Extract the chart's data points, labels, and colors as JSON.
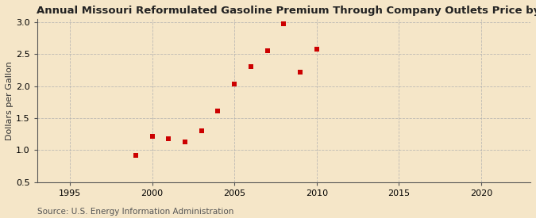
{
  "title": "Annual Missouri Reformulated Gasoline Premium Through Company Outlets Price by All Sellers",
  "ylabel": "Dollars per Gallon",
  "source": "Source: U.S. Energy Information Administration",
  "background_color": "#f5e6c8",
  "plot_bg_color": "#fdf5e0",
  "years": [
    1999,
    2000,
    2001,
    2002,
    2003,
    2004,
    2005,
    2006,
    2007,
    2008,
    2009,
    2010
  ],
  "values": [
    0.92,
    1.21,
    1.18,
    1.13,
    1.3,
    1.61,
    2.03,
    2.3,
    2.55,
    2.98,
    2.22,
    2.58
  ],
  "marker_color": "#cc0000",
  "marker": "s",
  "marker_size": 16,
  "xlim": [
    1993,
    2023
  ],
  "ylim": [
    0.5,
    3.05
  ],
  "xticks": [
    1995,
    2000,
    2005,
    2010,
    2015,
    2020
  ],
  "yticks": [
    0.5,
    1.0,
    1.5,
    2.0,
    2.5,
    3.0
  ],
  "grid_color": "#b0b0b0",
  "title_fontsize": 9.5,
  "label_fontsize": 8,
  "tick_fontsize": 8,
  "source_fontsize": 7.5
}
